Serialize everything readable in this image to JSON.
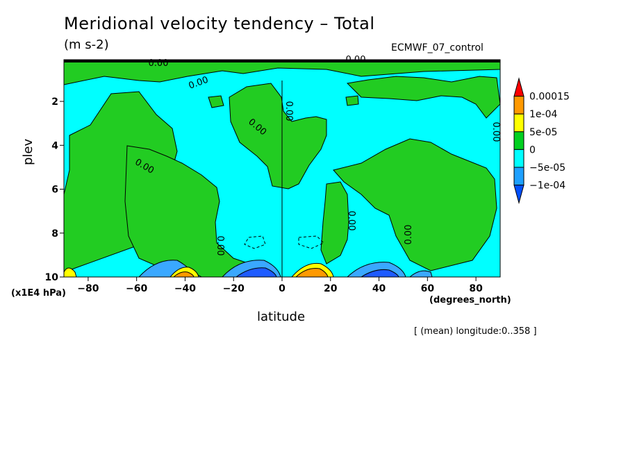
{
  "header": {
    "title": "Meridional velocity tendency – Total",
    "units": "(m s-2)",
    "dataset": "ECMWF_07_control"
  },
  "footer": {
    "range_note": "[ (mean) longitude:0..358 ]"
  },
  "chart_data": {
    "type": "heatmap",
    "title": "Meridional velocity tendency – Total",
    "subtitle": "(m s-2)",
    "xlabel": "latitude",
    "xunit": "(degrees_north)",
    "ylabel": "plev",
    "yunit": "(x1E4 hPa)",
    "xlim": [
      -90,
      90
    ],
    "ylim": [
      10,
      0.1
    ],
    "y_inverted": true,
    "x_ticks": [
      -80,
      -60,
      -40,
      -20,
      0,
      20,
      40,
      60,
      80
    ],
    "x_tick_labels": [
      "−80",
      "−60",
      "−40",
      "−20",
      "0",
      "20",
      "40",
      "60",
      "80"
    ],
    "y_ticks": [
      2,
      4,
      6,
      8,
      10
    ],
    "y_tick_labels": [
      "2",
      "4",
      "6",
      "8",
      "10"
    ],
    "contour_labels": [
      "0.00",
      "0.00",
      "0.00",
      "0.00",
      "0.00",
      "0.00",
      "0.00",
      "0.00",
      "0.00",
      "0.00"
    ],
    "colorbar": {
      "levels": [
        "−1e-04",
        "−5e-05",
        "0",
        "5e-05",
        "1e-04",
        "0.00015"
      ],
      "colors": [
        "#0050ff",
        "#1ea0ff",
        "#00ffff",
        "#00d020",
        "#ffff00",
        "#ff9900",
        "#ff0000"
      ]
    },
    "regions": {
      "cyan": "#00ffff",
      "green": "#22cc22",
      "light_blue": "#3aa8ff",
      "blue": "#1e5bff",
      "yellow": "#ffff00",
      "orange": "#ff9900"
    },
    "grid": false
  }
}
